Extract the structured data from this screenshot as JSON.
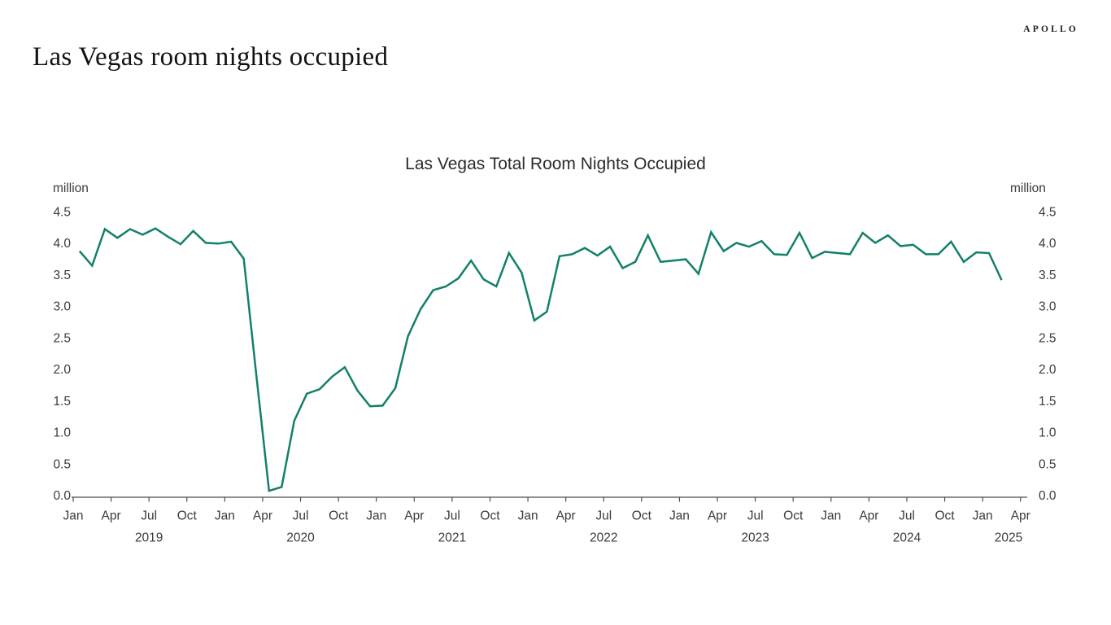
{
  "brand": {
    "logo_text": "APOLLO"
  },
  "header": {
    "title": "Las Vegas room nights occupied"
  },
  "chart_data": {
    "type": "line",
    "title": "Las Vegas Total Room Nights Occupied",
    "series_name": "Las Vegas total room nights occupied",
    "unit_label": "million",
    "line_color": "#12806A",
    "axis_color": "#4d4d4d",
    "label_color": "#3b3b3b",
    "ylim": [
      0.0,
      4.5
    ],
    "ytick_labels": [
      "0.0",
      "0.5",
      "1.0",
      "1.5",
      "2.0",
      "2.5",
      "3.0",
      "3.5",
      "4.0",
      "4.5"
    ],
    "xtick_quarter_labels": [
      "Jan",
      "Apr",
      "Jul",
      "Oct"
    ],
    "year_labels": [
      "2019",
      "2020",
      "2021",
      "2022",
      "2023",
      "2024",
      "2025"
    ],
    "x_start": "Jan 2019",
    "x_end": "Feb 2025",
    "grid": "off",
    "legend": "none",
    "months": [
      "Jan 2019",
      "Feb 2019",
      "Mar 2019",
      "Apr 2019",
      "May 2019",
      "Jun 2019",
      "Jul 2019",
      "Aug 2019",
      "Sep 2019",
      "Oct 2019",
      "Nov 2019",
      "Dec 2019",
      "Jan 2020",
      "Feb 2020",
      "Mar 2020",
      "Apr 2020",
      "May 2020",
      "Jun 2020",
      "Jul 2020",
      "Aug 2020",
      "Sep 2020",
      "Oct 2020",
      "Nov 2020",
      "Dec 2020",
      "Jan 2021",
      "Feb 2021",
      "Mar 2021",
      "Apr 2021",
      "May 2021",
      "Jun 2021",
      "Jul 2021",
      "Aug 2021",
      "Sep 2021",
      "Oct 2021",
      "Nov 2021",
      "Dec 2021",
      "Jan 2022",
      "Feb 2022",
      "Mar 2022",
      "Apr 2022",
      "May 2022",
      "Jun 2022",
      "Jul 2022",
      "Aug 2022",
      "Sep 2022",
      "Oct 2022",
      "Nov 2022",
      "Dec 2022",
      "Jan 2023",
      "Feb 2023",
      "Mar 2023",
      "Apr 2023",
      "May 2023",
      "Jun 2023",
      "Jul 2023",
      "Aug 2023",
      "Sep 2023",
      "Oct 2023",
      "Nov 2023",
      "Dec 2023",
      "Jan 2024",
      "Feb 2024",
      "Mar 2024",
      "Apr 2024",
      "May 2024",
      "Jun 2024",
      "Jul 2024",
      "Aug 2024",
      "Sep 2024",
      "Oct 2024",
      "Nov 2024",
      "Dec 2024",
      "Jan 2025",
      "Feb 2025"
    ],
    "values": [
      3.87,
      3.64,
      4.22,
      4.08,
      4.22,
      4.13,
      4.23,
      4.1,
      3.98,
      4.19,
      4.0,
      3.99,
      4.02,
      3.75,
      1.9,
      0.07,
      0.13,
      1.18,
      1.61,
      1.68,
      1.88,
      2.03,
      1.66,
      1.41,
      1.42,
      1.7,
      2.52,
      2.95,
      3.25,
      3.31,
      3.44,
      3.72,
      3.42,
      3.31,
      3.84,
      3.53,
      2.77,
      2.91,
      3.79,
      3.82,
      3.92,
      3.8,
      3.94,
      3.6,
      3.7,
      4.12,
      3.7,
      3.72,
      3.74,
      3.51,
      4.17,
      3.87,
      4.0,
      3.94,
      4.03,
      3.82,
      3.81,
      4.16,
      3.76,
      3.86,
      3.84,
      3.82,
      4.16,
      4.0,
      4.12,
      3.95,
      3.97,
      3.82,
      3.82,
      4.02,
      3.7,
      3.85,
      3.84,
      3.41
    ]
  }
}
